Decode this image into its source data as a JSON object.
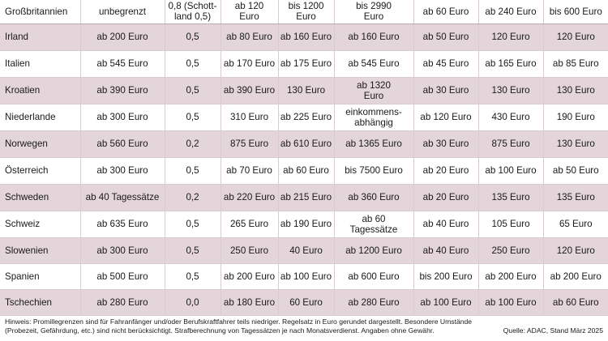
{
  "header": {
    "country": "Großbritannien",
    "values": [
      "unbegrenzt",
      "0,8 (Schott-\nland 0,5)",
      "ab 120\nEuro",
      "bis 1200\nEuro",
      "bis 2990\nEuro",
      "ab 60 Euro",
      "ab 240 Euro",
      "bis 600 Euro"
    ]
  },
  "rows": [
    {
      "country": "Irland",
      "values": [
        "ab 200 Euro",
        "0,5",
        "ab 80 Euro",
        "ab 160 Euro",
        "ab 160 Euro",
        "ab 50 Euro",
        "120 Euro",
        "120 Euro"
      ]
    },
    {
      "country": "Italien",
      "values": [
        "ab 545 Euro",
        "0,5",
        "ab 170 Euro",
        "ab 175 Euro",
        "ab 545 Euro",
        "ab 45 Euro",
        "ab 165 Euro",
        "ab 85 Euro"
      ]
    },
    {
      "country": "Kroatien",
      "values": [
        "ab 390 Euro",
        "0,5",
        "ab 390 Euro",
        "130 Euro",
        "ab 1320\nEuro",
        "ab 30 Euro",
        "130 Euro",
        "130 Euro"
      ]
    },
    {
      "country": "Niederlande",
      "values": [
        "ab 300 Euro",
        "0,5",
        "310 Euro",
        "ab 225 Euro",
        "einkommens-\nabhängig",
        "ab 120 Euro",
        "430 Euro",
        "190 Euro"
      ]
    },
    {
      "country": "Norwegen",
      "values": [
        "ab 560 Euro",
        "0,2",
        "875 Euro",
        "ab 610 Euro",
        "ab 1365 Euro",
        "ab 30 Euro",
        "875 Euro",
        "130 Euro"
      ]
    },
    {
      "country": "Österreich",
      "values": [
        "ab 300 Euro",
        "0,5",
        "ab 70 Euro",
        "ab 60 Euro",
        "bis 7500 Euro",
        "ab 20 Euro",
        "ab 100 Euro",
        "ab 50 Euro"
      ]
    },
    {
      "country": "Schweden",
      "values": [
        "ab 40 Tagessätze",
        "0,2",
        "ab 220 Euro",
        "ab 215 Euro",
        "ab 360 Euro",
        "ab 20 Euro",
        "135 Euro",
        "135 Euro"
      ]
    },
    {
      "country": "Schweiz",
      "values": [
        "ab 635 Euro",
        "0,5",
        "265 Euro",
        "ab 190 Euro",
        "ab 60\nTagessätze",
        "ab 40 Euro",
        "105 Euro",
        "65 Euro"
      ]
    },
    {
      "country": "Slowenien",
      "values": [
        "ab 300 Euro",
        "0,5",
        "250 Euro",
        "40 Euro",
        "ab 1200 Euro",
        "ab 40 Euro",
        "250 Euro",
        "120 Euro"
      ]
    },
    {
      "country": "Spanien",
      "values": [
        "ab 500 Euro",
        "0,5",
        "ab 200 Euro",
        "ab 100 Euro",
        "ab 600 Euro",
        "bis 200 Euro",
        "ab 200 Euro",
        "ab 200 Euro"
      ]
    },
    {
      "country": "Tschechien",
      "values": [
        "ab 280 Euro",
        "0,0",
        "ab 180 Euro",
        "60 Euro",
        "ab 280 Euro",
        "ab 100 Euro",
        "ab 100 Euro",
        "ab 60 Euro"
      ]
    }
  ],
  "footer": {
    "note": "Hinweis: Promillegrenzen sind für Fahranfänger und/oder Berufskraftfahrer teils niedriger. Regelsatz in Euro gerundet dargestellt. Besondere Umstände (Probezeit, Gefährdung, etc.) sind nicht berücksichtigt. Strafberechnung von Tagessätzen je nach Monatsverdienst. Angaben ohne Gewähr.",
    "source": "Quelle: ADAC, Stand März 2025"
  }
}
